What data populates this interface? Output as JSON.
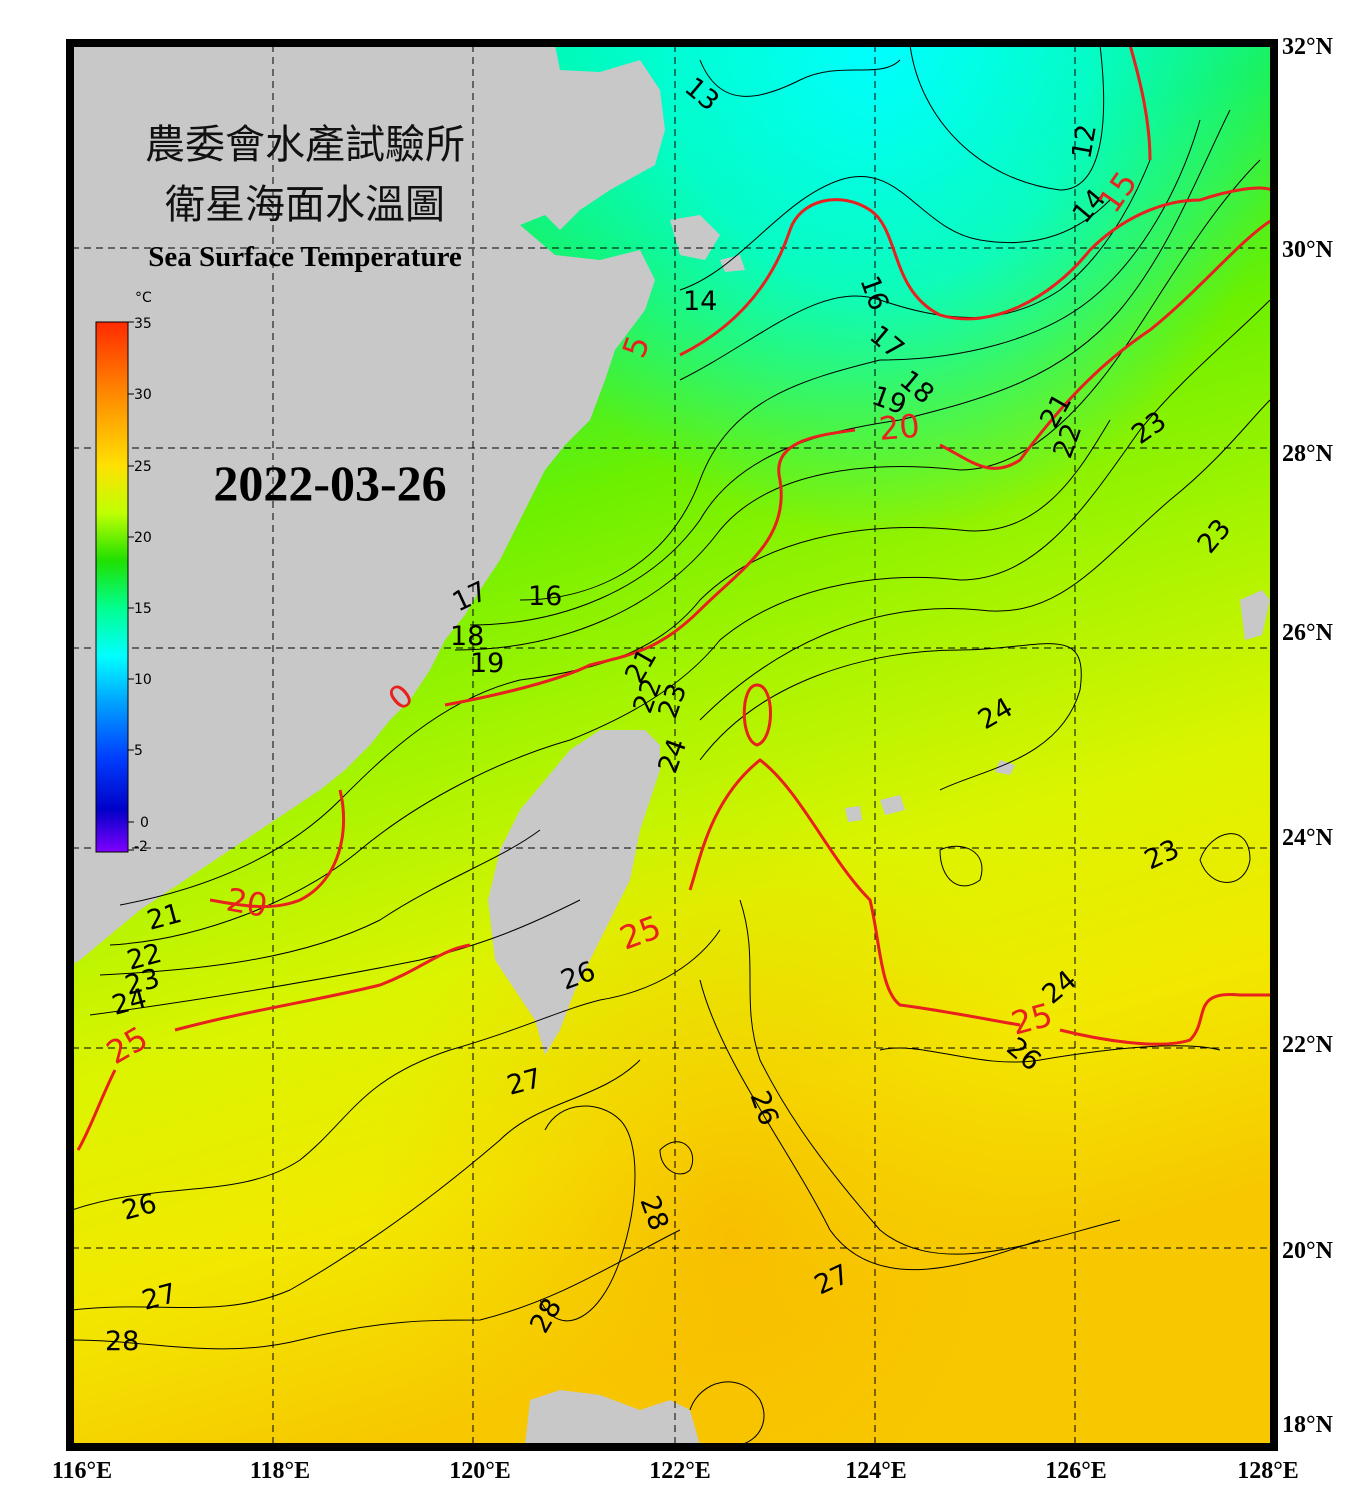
{
  "title": {
    "line1": "農委會水產試驗所",
    "line2": "衛星海面水溫圖",
    "english": "Sea Surface Temperature"
  },
  "date": "2022-03-26",
  "colorbar": {
    "unit": "°C",
    "ticks": [
      "35",
      "30",
      "25",
      "20",
      "15",
      "10",
      "5",
      "0",
      "-2"
    ],
    "colors": [
      "#ff2a00",
      "#ff8c00",
      "#ffd000",
      "#ffff00",
      "#bfff00",
      "#5cff00",
      "#00e000",
      "#00ff90",
      "#00ffff",
      "#00a0ff",
      "#0050ff",
      "#0000d0",
      "#7a00ff"
    ]
  },
  "axes": {
    "lon_labels": [
      "116°E",
      "118°E",
      "120°E",
      "122°E",
      "124°E",
      "126°E",
      "128°E"
    ],
    "lat_labels": [
      "32°N",
      "30°N",
      "28°N",
      "26°N",
      "24°N",
      "22°N",
      "20°N",
      "18°N"
    ]
  },
  "isotherm_labels": {
    "black": [
      "13",
      "12",
      "14",
      "16",
      "17",
      "18",
      "19",
      "21",
      "22",
      "23",
      "23",
      "23",
      "14",
      "16",
      "17",
      "18",
      "19",
      "21",
      "22",
      "23",
      "24",
      "24",
      "24",
      "21",
      "22",
      "23",
      "24",
      "26",
      "27",
      "26",
      "26",
      "28",
      "27",
      "28",
      "28",
      "27",
      "26",
      "23"
    ],
    "red": [
      "15",
      "20",
      "20",
      "25",
      "25",
      "25",
      "5",
      "0"
    ]
  },
  "land_color": "#c8c8c8",
  "contour_red": "#e8201e"
}
